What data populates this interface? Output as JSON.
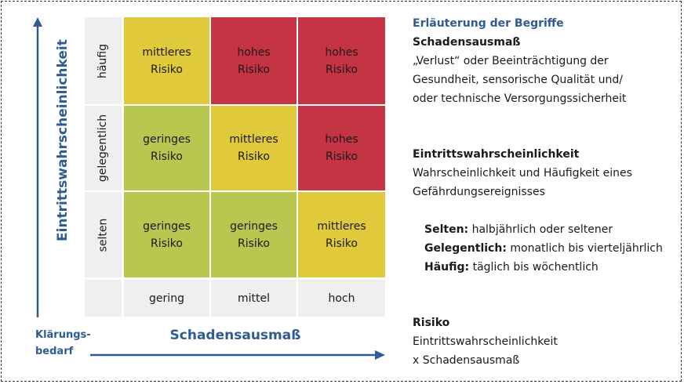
{
  "colors": {
    "low": "#b9c751",
    "medium": "#e0c93a",
    "high": "#c43444",
    "axis": "#2f5b93",
    "label_bg": "#efefef"
  },
  "matrix": {
    "y_axis_title": "Eintrittswahrscheinlichkeit",
    "x_axis_title": "Schadensausmaß",
    "corner_label": "Klärungs-\nbedarf",
    "corner_line1": "Klärungs-",
    "corner_line2": "bedarf",
    "rows": [
      "häufig",
      "gelegentlich",
      "selten"
    ],
    "cols": [
      "gering",
      "mittel",
      "hoch"
    ],
    "cells": [
      [
        {
          "l1": "mittleres",
          "l2": "Risiko",
          "level": "medium"
        },
        {
          "l1": "hohes",
          "l2": "Risiko",
          "level": "high"
        },
        {
          "l1": "hohes",
          "l2": "Risiko",
          "level": "high"
        }
      ],
      [
        {
          "l1": "geringes",
          "l2": "Risiko",
          "level": "low"
        },
        {
          "l1": "mittleres",
          "l2": "Risiko",
          "level": "medium"
        },
        {
          "l1": "hohes",
          "l2": "Risiko",
          "level": "high"
        }
      ],
      [
        {
          "l1": "geringes",
          "l2": "Risiko",
          "level": "low"
        },
        {
          "l1": "geringes",
          "l2": "Risiko",
          "level": "low"
        },
        {
          "l1": "mittleres",
          "l2": "Risiko",
          "level": "medium"
        }
      ]
    ]
  },
  "legend": {
    "title": "Erläuterung der Begriffe",
    "schaden": {
      "heading": "Schadensausmaß",
      "lines": [
        "„Verlust“ oder Beeinträchtigung der",
        "Gesundheit, sensorische Qualität und/",
        "oder technische Versorgungssicherheit"
      ]
    },
    "eintritt": {
      "heading": "Eintrittswahrscheinlichkeit",
      "lines": [
        "Wahrscheinlichkeit und Häufigkeit eines",
        "Gefährdungsereignisses"
      ]
    },
    "freq": [
      {
        "term": "Selten:",
        "desc": " halbjährlich oder seltener"
      },
      {
        "term": "Gelegentlich:",
        "desc": " monatlich bis vierteljährlich"
      },
      {
        "term": "Häufig:",
        "desc": " täglich bis wöchentlich"
      }
    ],
    "risiko": {
      "heading": "Risiko",
      "lines": [
        "Eintrittswahrscheinlichkeit",
        "x Schadensausmaß"
      ]
    }
  }
}
